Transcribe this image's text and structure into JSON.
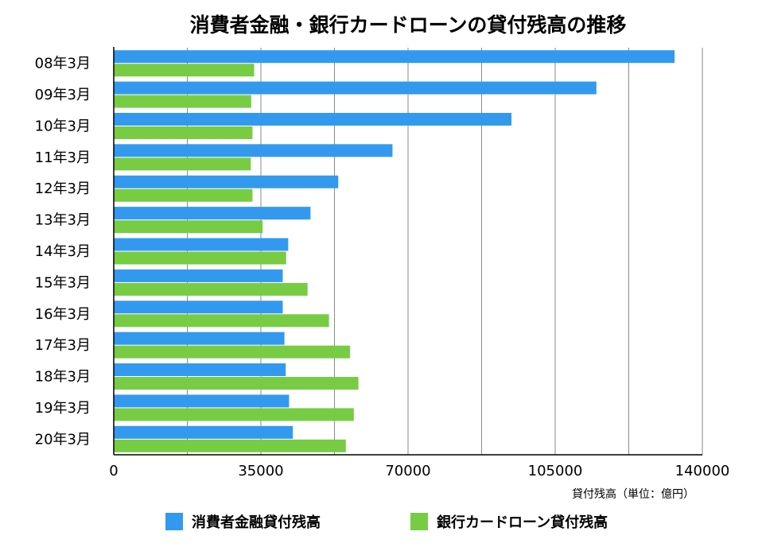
{
  "chart_data": {
    "type": "bar",
    "orientation": "horizontal",
    "title": "消費者金融・銀行カードローンの貸付残高の推移",
    "categories": [
      "08年3月",
      "09年3月",
      "10年3月",
      "11年3月",
      "12年3月",
      "13年3月",
      "14年3月",
      "15年3月",
      "16年3月",
      "17年3月",
      "18年3月",
      "19年3月",
      "20年3月"
    ],
    "series": [
      {
        "name": "消費者金融貸付残高",
        "color": "#3399ee",
        "values": [
          133400,
          114800,
          94600,
          66300,
          53400,
          46800,
          41500,
          40200,
          40200,
          40600,
          40900,
          41700,
          42600
        ]
      },
      {
        "name": "銀行カードローン貸付残高",
        "color": "#77cc44",
        "values": [
          33400,
          32700,
          33000,
          32600,
          33000,
          35400,
          41000,
          46100,
          51200,
          56200,
          58200,
          57100,
          55200
        ]
      }
    ],
    "xlim": [
      0,
      140000
    ],
    "xticks": [
      "0",
      "35000",
      "70000",
      "105000",
      "140000"
    ],
    "xlabel": "貸付残高（単位：億円）",
    "grid": true,
    "legend_position": "bottom"
  }
}
